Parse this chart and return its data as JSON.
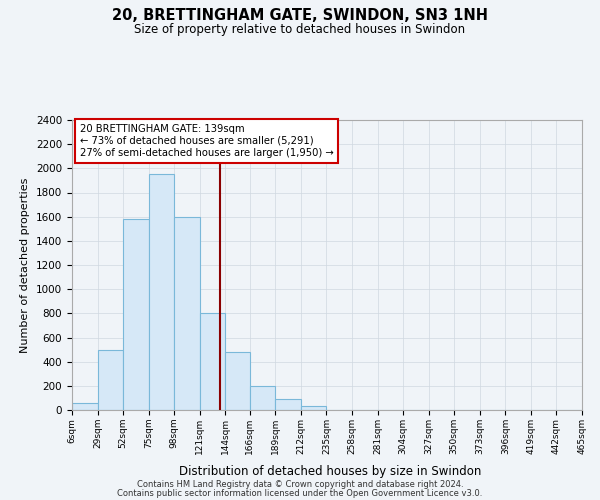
{
  "title": "20, BRETTINGHAM GATE, SWINDON, SN3 1NH",
  "subtitle": "Size of property relative to detached houses in Swindon",
  "xlabel": "Distribution of detached houses by size in Swindon",
  "ylabel": "Number of detached properties",
  "footnote1": "Contains HM Land Registry data © Crown copyright and database right 2024.",
  "footnote2": "Contains public sector information licensed under the Open Government Licence v3.0.",
  "bar_edges": [
    6,
    29,
    52,
    75,
    98,
    121,
    144,
    166,
    189,
    212,
    235,
    258,
    281,
    304,
    327,
    350,
    373,
    396,
    419,
    442,
    465
  ],
  "bar_heights": [
    55,
    500,
    1580,
    1950,
    1600,
    800,
    480,
    195,
    90,
    35,
    0,
    0,
    0,
    0,
    0,
    0,
    0,
    0,
    0,
    0
  ],
  "bar_color": "#d6e8f7",
  "bar_edge_color": "#7ab8d9",
  "grid_color": "#d0d8e0",
  "vline_x": 139,
  "vline_color": "#8b0000",
  "annotation_title": "20 BRETTINGHAM GATE: 139sqm",
  "annotation_line1": "← 73% of detached houses are smaller (5,291)",
  "annotation_line2": "27% of semi-detached houses are larger (1,950) →",
  "annotation_box_color": "#ffffff",
  "annotation_box_edge": "#cc0000",
  "ylim": [
    0,
    2400
  ],
  "yticks": [
    0,
    200,
    400,
    600,
    800,
    1000,
    1200,
    1400,
    1600,
    1800,
    2000,
    2200,
    2400
  ],
  "xtick_labels": [
    "6sqm",
    "29sqm",
    "52sqm",
    "75sqm",
    "98sqm",
    "121sqm",
    "144sqm",
    "166sqm",
    "189sqm",
    "212sqm",
    "235sqm",
    "258sqm",
    "281sqm",
    "304sqm",
    "327sqm",
    "350sqm",
    "373sqm",
    "396sqm",
    "419sqm",
    "442sqm",
    "465sqm"
  ],
  "background_color": "#f0f4f8",
  "plot_bg_color": "#f0f4f8"
}
